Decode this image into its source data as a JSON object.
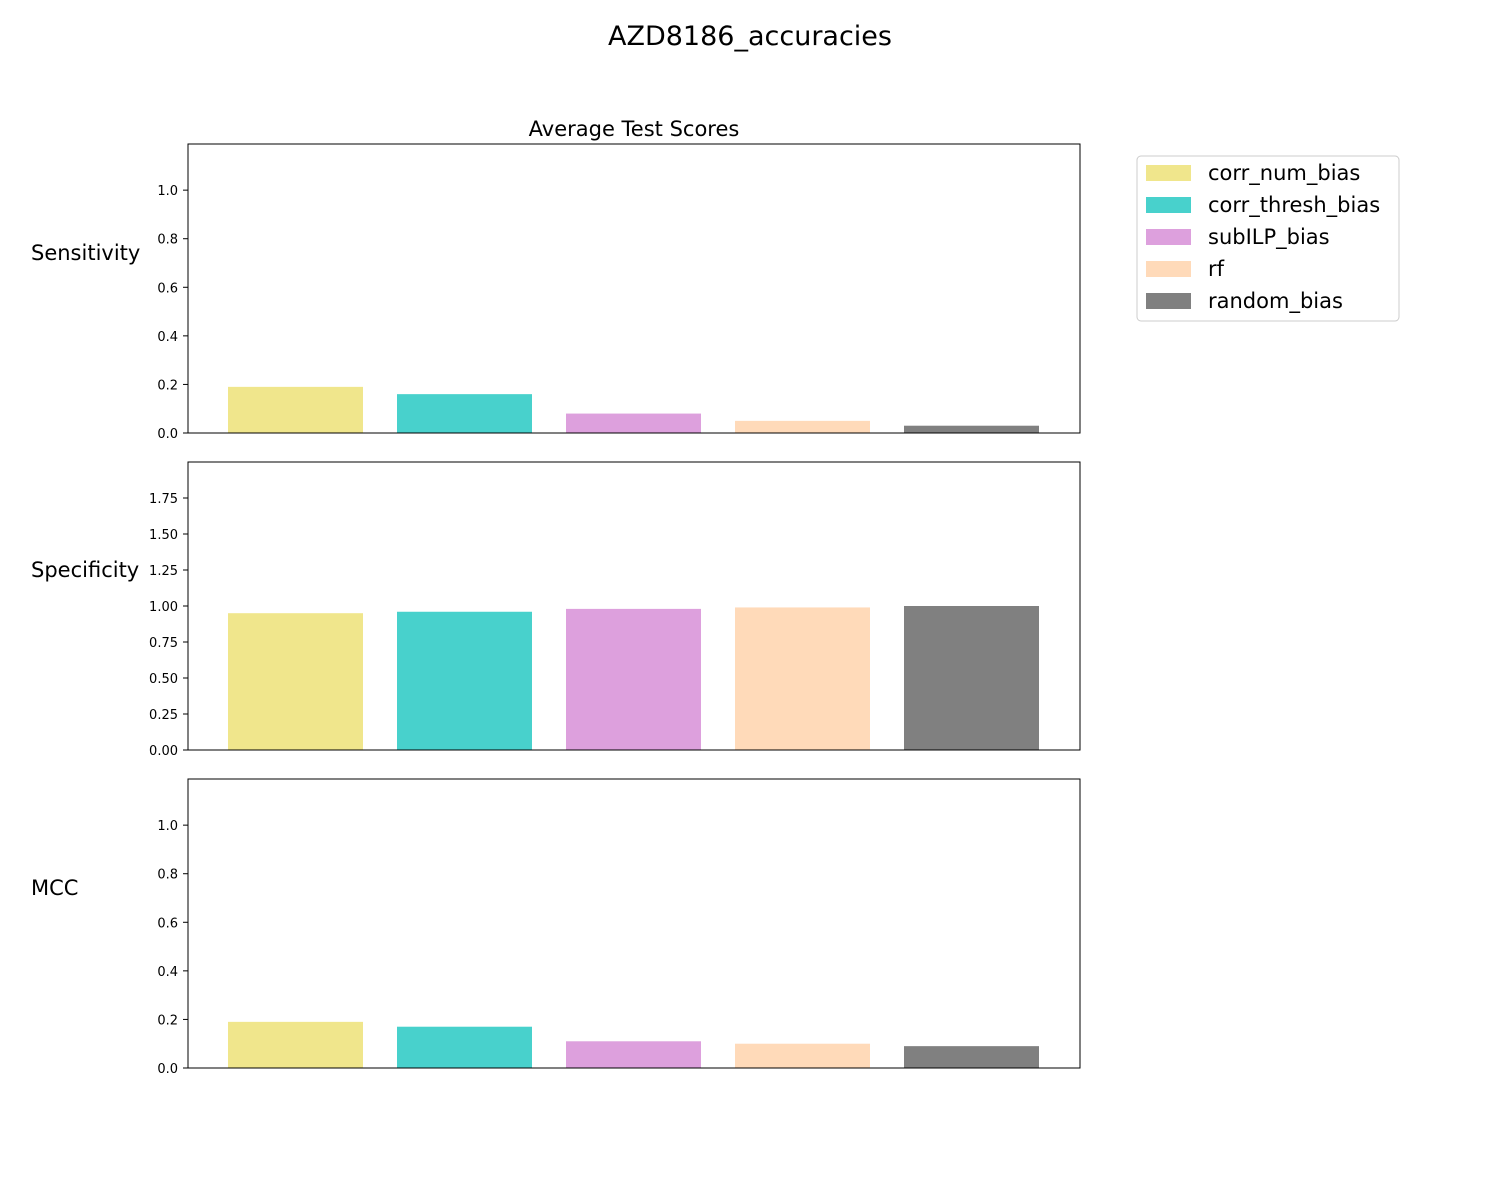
{
  "figure": {
    "suptitle": "AZD8186_accuracies",
    "subplot_title": "Average Test Scores"
  },
  "colors": {
    "corr_num_bias": "#f0e68c",
    "corr_thresh_bias": "#48d1cc",
    "subILP_bias": "#dda0dd",
    "rf": "#ffdab9",
    "random_bias": "#808080"
  },
  "chart_data": [
    {
      "type": "bar",
      "title": "Average Test Scores",
      "ylabel": "Sensitivity",
      "ylim": [
        0,
        1.19
      ],
      "yticks": [
        0.0,
        0.2,
        0.4,
        0.6,
        0.8,
        1.0
      ],
      "ytick_labels": [
        "0.0",
        "0.2",
        "0.4",
        "0.6",
        "0.8",
        "1.0"
      ],
      "categories": [
        "corr_num_bias",
        "corr_thresh_bias",
        "subILP_bias",
        "rf",
        "random_bias"
      ],
      "values": [
        0.19,
        0.16,
        0.08,
        0.05,
        0.03
      ],
      "legend": "top-right (outside)"
    },
    {
      "type": "bar",
      "ylabel": "Specificity",
      "ylim": [
        0,
        2.0
      ],
      "yticks": [
        0.0,
        0.25,
        0.5,
        0.75,
        1.0,
        1.25,
        1.5,
        1.75
      ],
      "ytick_labels": [
        "0.00",
        "0.25",
        "0.50",
        "0.75",
        "1.00",
        "1.25",
        "1.50",
        "1.75"
      ],
      "categories": [
        "corr_num_bias",
        "corr_thresh_bias",
        "subILP_bias",
        "rf",
        "random_bias"
      ],
      "values": [
        0.95,
        0.96,
        0.98,
        0.99,
        1.0
      ]
    },
    {
      "type": "bar",
      "ylabel": "MCC",
      "ylim": [
        0,
        1.19
      ],
      "yticks": [
        0.0,
        0.2,
        0.4,
        0.6,
        0.8,
        1.0
      ],
      "ytick_labels": [
        "0.0",
        "0.2",
        "0.4",
        "0.6",
        "0.8",
        "1.0"
      ],
      "categories": [
        "corr_num_bias",
        "corr_thresh_bias",
        "subILP_bias",
        "rf",
        "random_bias"
      ],
      "values": [
        0.19,
        0.17,
        0.11,
        0.1,
        0.09
      ]
    }
  ],
  "legend": {
    "entries": [
      "corr_num_bias",
      "corr_thresh_bias",
      "subILP_bias",
      "rf",
      "random_bias"
    ]
  }
}
